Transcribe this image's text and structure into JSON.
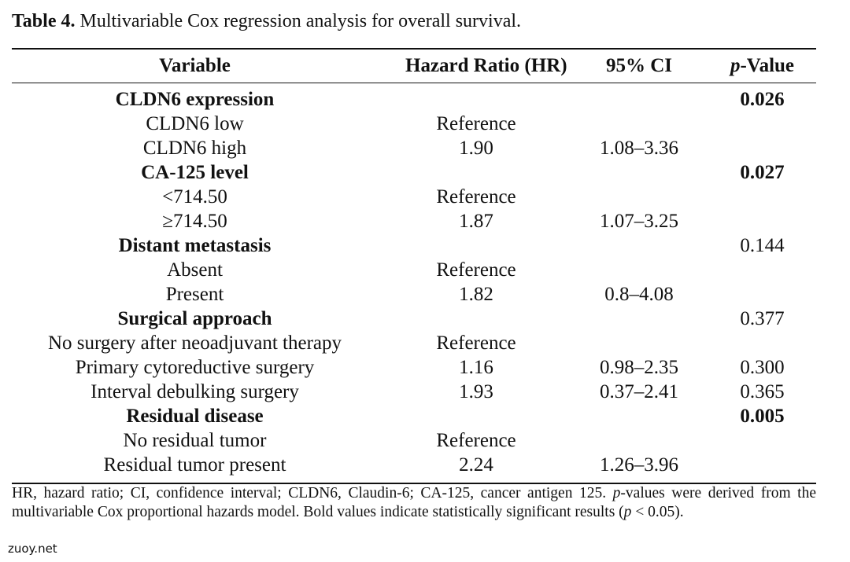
{
  "caption": {
    "label": "Table 4.",
    "text": " Multivariable Cox regression analysis for overall survival."
  },
  "table": {
    "headers": {
      "variable": "Variable",
      "hr": "Hazard Ratio (HR)",
      "ci": "95% CI",
      "p_italic": "p",
      "p_rest": "-Value"
    },
    "rows": [
      {
        "variable": "CLDN6 expression",
        "hr": "",
        "ci": "",
        "p": "0.026"
      },
      {
        "variable": "CLDN6 low",
        "hr": "Reference",
        "ci": "",
        "p": ""
      },
      {
        "variable": "CLDN6 high",
        "hr": "1.90",
        "ci": "1.08–3.36",
        "p": ""
      },
      {
        "variable": "CA-125 level",
        "hr": "",
        "ci": "",
        "p": "0.027"
      },
      {
        "variable": "<714.50",
        "hr": "Reference",
        "ci": "",
        "p": ""
      },
      {
        "variable": "≥714.50",
        "hr": "1.87",
        "ci": "1.07–3.25",
        "p": ""
      },
      {
        "variable": "Distant metastasis",
        "hr": "",
        "ci": "",
        "p": "0.144"
      },
      {
        "variable": "Absent",
        "hr": "Reference",
        "ci": "",
        "p": ""
      },
      {
        "variable": "Present",
        "hr": "1.82",
        "ci": "0.8–4.08",
        "p": ""
      },
      {
        "variable": "Surgical approach",
        "hr": "",
        "ci": "",
        "p": "0.377"
      },
      {
        "variable": "No surgery after neoadjuvant therapy",
        "hr": "Reference",
        "ci": "",
        "p": ""
      },
      {
        "variable": "Primary cytoreductive surgery",
        "hr": "1.16",
        "ci": "0.98–2.35",
        "p": "0.300"
      },
      {
        "variable": "Interval debulking surgery",
        "hr": "1.93",
        "ci": "0.37–2.41",
        "p": "0.365"
      },
      {
        "variable": "Residual disease",
        "hr": "",
        "ci": "",
        "p": "0.005"
      },
      {
        "variable": "No residual tumor",
        "hr": "Reference",
        "ci": "",
        "p": ""
      },
      {
        "variable": "Residual tumor present",
        "hr": "2.24",
        "ci": "1.26–3.96",
        "p": ""
      }
    ]
  },
  "notes": {
    "part1": "HR, hazard ratio; CI, confidence interval; CLDN6, Claudin-6; CA-125, cancer antigen 125. ",
    "p1": "p",
    "part2": "-values were derived from the multivariable Cox proportional hazards model. Bold values indicate statistically significant results (",
    "p2": "p",
    "part3": " < 0.05)."
  },
  "watermark": "zuoy.net"
}
